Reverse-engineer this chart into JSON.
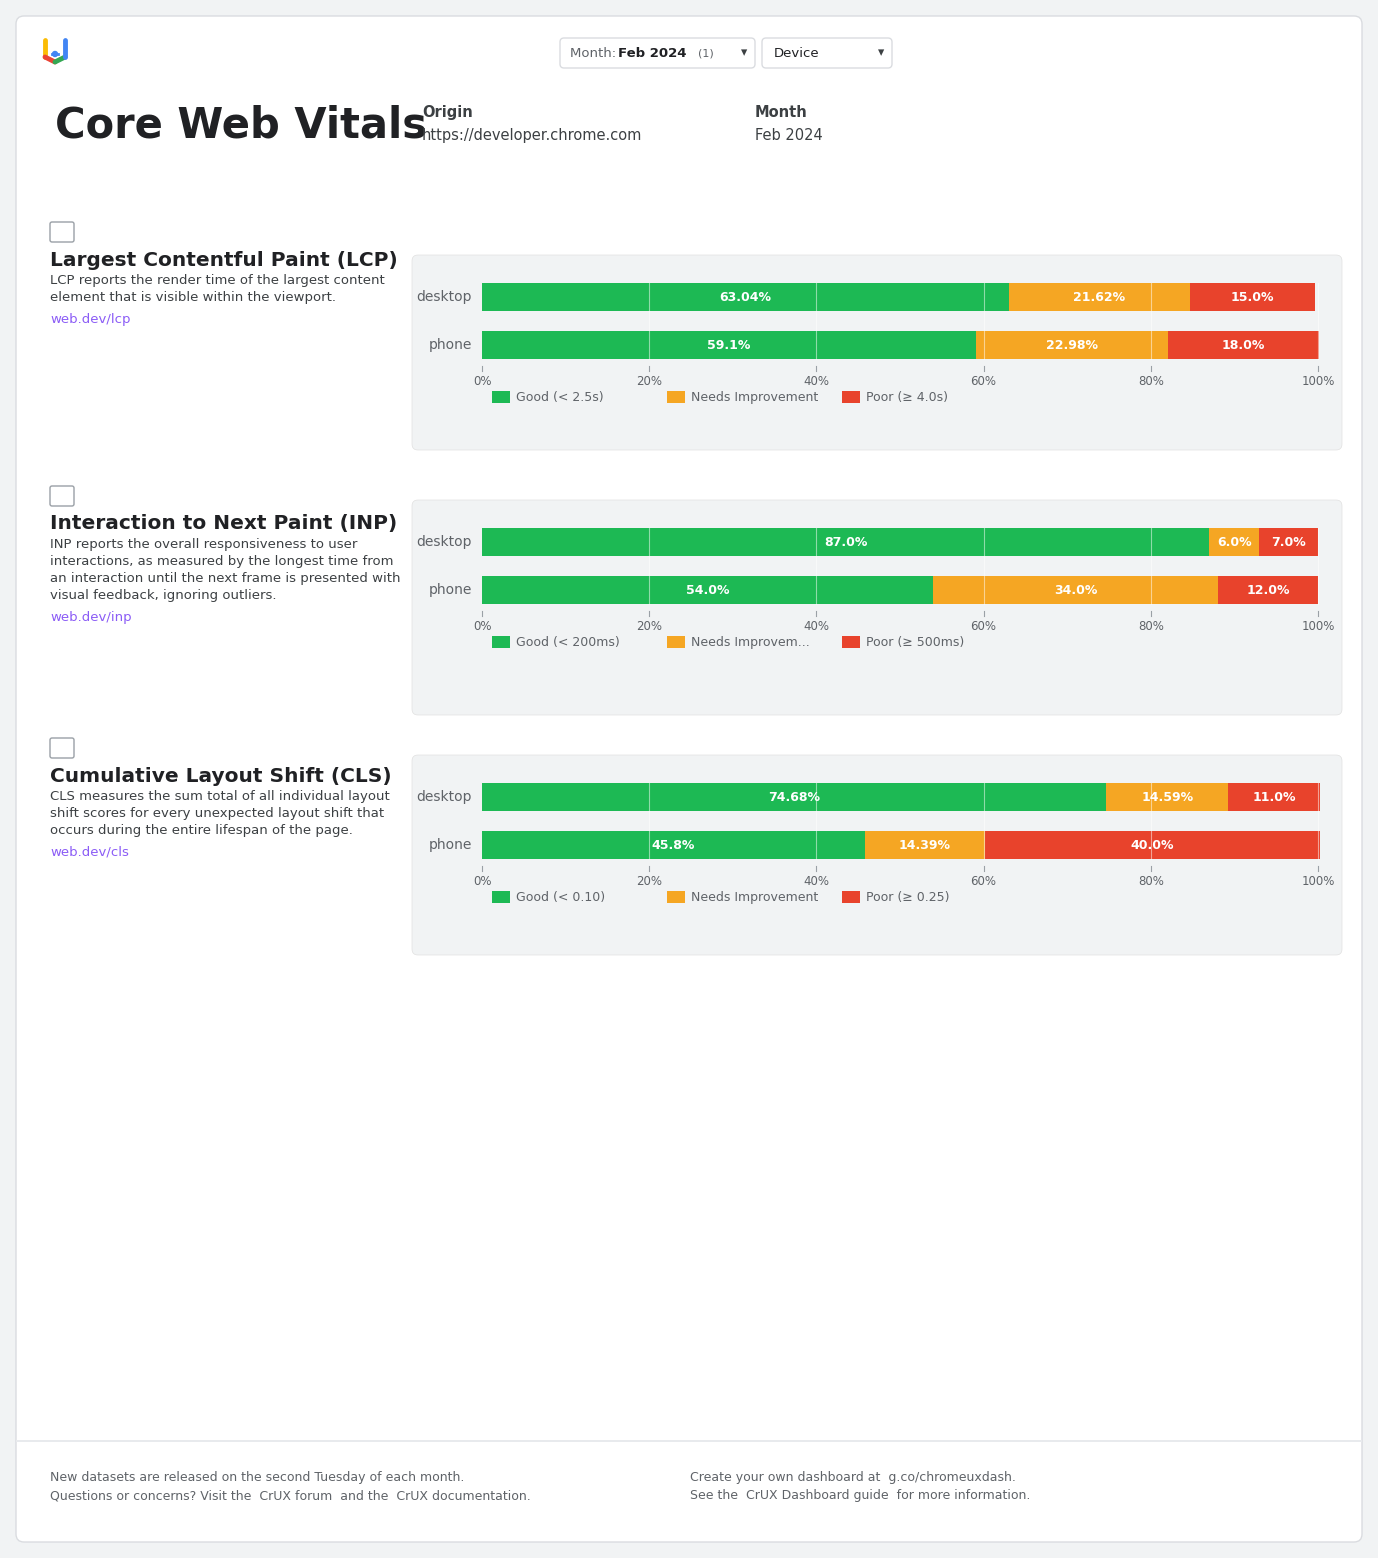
{
  "page_bg": "#f1f3f4",
  "card_bg": "#ffffff",
  "chart_bg": "#f1f3f4",
  "title": "Core Web Vitals",
  "origin_label": "Origin",
  "origin_value": "https://developer.chrome.com",
  "month_label": "Month",
  "month_value": "Feb 2024",
  "month_filter": "Month: Feb 2024",
  "device_filter": "Device",
  "sections": [
    {
      "name": "Largest Contentful Paint (LCP)",
      "description": "LCP reports the render time of the largest content\nelement that is visible within the viewport.",
      "link": "web.dev/lcp",
      "categories": [
        "desktop",
        "phone"
      ],
      "good": [
        63.04,
        59.1
      ],
      "needs_improvement": [
        21.62,
        22.98
      ],
      "poor": [
        15.0,
        18.0
      ],
      "legend_good": "Good (< 2.5s)",
      "legend_ni": "Needs Improvement",
      "legend_poor": "Poor (≥ 4.0s)"
    },
    {
      "name": "Interaction to Next Paint (INP)",
      "description": "INP reports the overall responsiveness to user\ninteractions, as measured by the longest time from\nan interaction until the next frame is presented with\nvisual feedback, ignoring outliers.",
      "link": "web.dev/inp",
      "categories": [
        "desktop",
        "phone"
      ],
      "good": [
        87.0,
        54.0
      ],
      "needs_improvement": [
        6.0,
        34.0
      ],
      "poor": [
        7.0,
        12.0
      ],
      "legend_good": "Good (< 200ms)",
      "legend_ni": "Needs Improvem...",
      "legend_poor": "Poor (≥ 500ms)"
    },
    {
      "name": "Cumulative Layout Shift (CLS)",
      "description": "CLS measures the sum total of all individual layout\nshift scores for every unexpected layout shift that\noccurs during the entire lifespan of the page.",
      "link": "web.dev/cls",
      "categories": [
        "desktop",
        "phone"
      ],
      "good": [
        74.68,
        45.8
      ],
      "needs_improvement": [
        14.59,
        14.39
      ],
      "poor": [
        11.0,
        40.0
      ],
      "legend_good": "Good (< 0.10)",
      "legend_ni": "Needs Improvement",
      "legend_poor": "Poor (≥ 0.25)"
    }
  ],
  "color_good": "#1db954",
  "color_ni": "#f5a623",
  "color_poor": "#e8432c",
  "text_dark": "#202124",
  "text_mid": "#3c4043",
  "text_light": "#5f6368",
  "link_color": "#8b5cf6",
  "border_color": "#dadce0"
}
